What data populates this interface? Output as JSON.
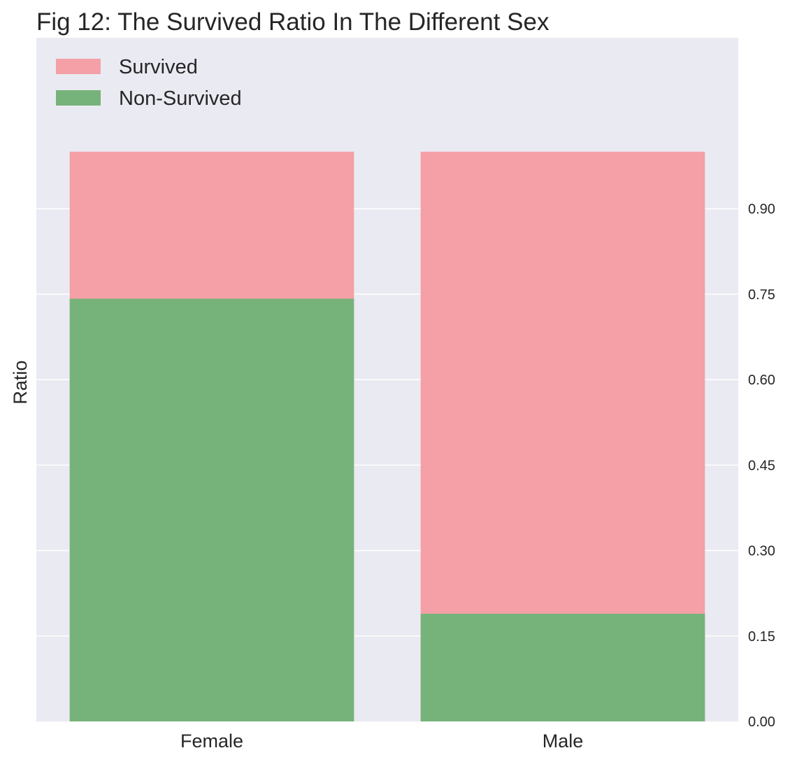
{
  "chart_data": {
    "type": "bar",
    "stacked": false,
    "title": "Fig 12: The Survived Ratio In The Different Sex",
    "xlabel": "",
    "ylabel": "Ratio",
    "categories": [
      "Female",
      "Male"
    ],
    "series": [
      {
        "name": "Survived",
        "values": [
          1.0,
          1.0
        ],
        "color": "#f4a0a6"
      },
      {
        "name": "Non-Survived",
        "values": [
          0.742,
          0.189
        ],
        "color": "#76b37a"
      }
    ],
    "ylim": [
      0,
      1.2
    ],
    "yticks": [
      0.0,
      0.15,
      0.3,
      0.45,
      0.6,
      0.75,
      0.9
    ],
    "ytick_labels": [
      "0.00",
      "0.15",
      "0.30",
      "0.45",
      "0.60",
      "0.75",
      "0.90"
    ],
    "y_axis_side": "right",
    "grid": true,
    "legend_position": "top-left",
    "background_color": "#eaeaf2"
  }
}
